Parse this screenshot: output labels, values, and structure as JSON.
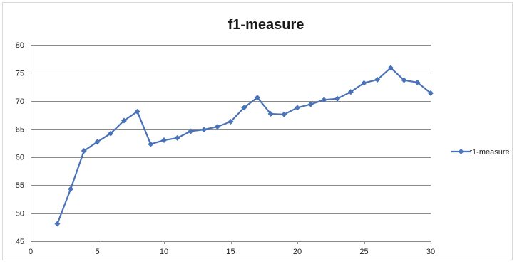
{
  "chart_data": {
    "type": "line",
    "title": "f1-measure",
    "xlabel": "",
    "ylabel": "",
    "xlim": [
      0,
      30
    ],
    "ylim": [
      45,
      80
    ],
    "x_ticks": [
      "0",
      "5",
      "10",
      "15",
      "20",
      "25",
      "30"
    ],
    "y_ticks": [
      "45",
      "50",
      "55",
      "60",
      "65",
      "70",
      "75",
      "80"
    ],
    "grid": "horizontal",
    "legend_position": "right",
    "series": [
      {
        "name": "f1-measure",
        "color": "#4a72b8",
        "marker": "diamond",
        "x": [
          2,
          3,
          4,
          5,
          6,
          7,
          8,
          9,
          10,
          11,
          12,
          13,
          14,
          15,
          16,
          17,
          18,
          19,
          20,
          21,
          22,
          23,
          24,
          25,
          26,
          27,
          28,
          29,
          30
        ],
        "y": [
          48.1,
          54.3,
          61.1,
          62.7,
          64.2,
          66.5,
          68.1,
          62.3,
          63.0,
          63.4,
          64.6,
          64.9,
          65.4,
          66.3,
          68.8,
          70.6,
          67.7,
          67.6,
          68.8,
          69.4,
          70.2,
          70.4,
          71.6,
          73.2,
          73.8,
          75.9,
          73.7,
          73.3,
          71.4
        ]
      }
    ]
  }
}
